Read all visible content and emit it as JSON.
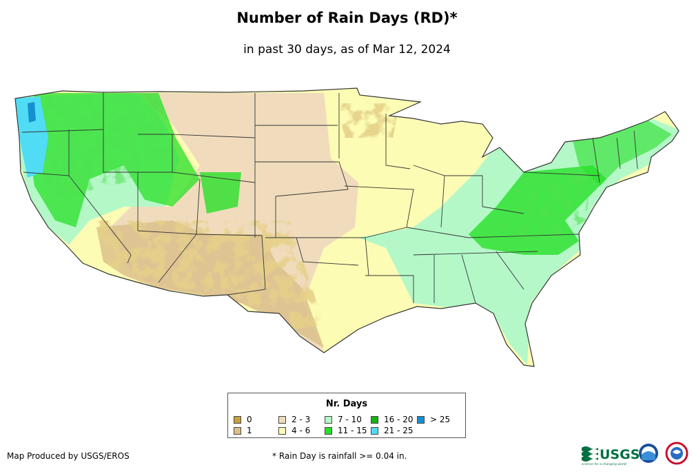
{
  "title": "Number of Rain Days (RD)*",
  "subtitle": "in past 30 days, as of Mar 12, 2024",
  "legend": {
    "title": "Nr. Days",
    "items": [
      {
        "label": "0",
        "color": "#c8a040"
      },
      {
        "label": "1",
        "color": "#dcc08c"
      },
      {
        "label": "2 - 3",
        "color": "#f0dcbc"
      },
      {
        "label": "4 - 6",
        "color": "#fcfcb4"
      },
      {
        "label": "7 - 10",
        "color": "#b4f8c8"
      },
      {
        "label": "11 - 15",
        "color": "#28e028"
      },
      {
        "label": "16 - 20",
        "color": "#14b414"
      },
      {
        "label": "21 - 25",
        "color": "#50dcf4"
      },
      {
        "label": "> 25",
        "color": "#1490d0"
      }
    ]
  },
  "credit": "Map Produced by USGS/EROS",
  "footnote": "* Rain Day is rainfall >= 0.04 in.",
  "logos": {
    "usgs": "USGS",
    "usgs_tagline": "science for a changing world"
  }
}
